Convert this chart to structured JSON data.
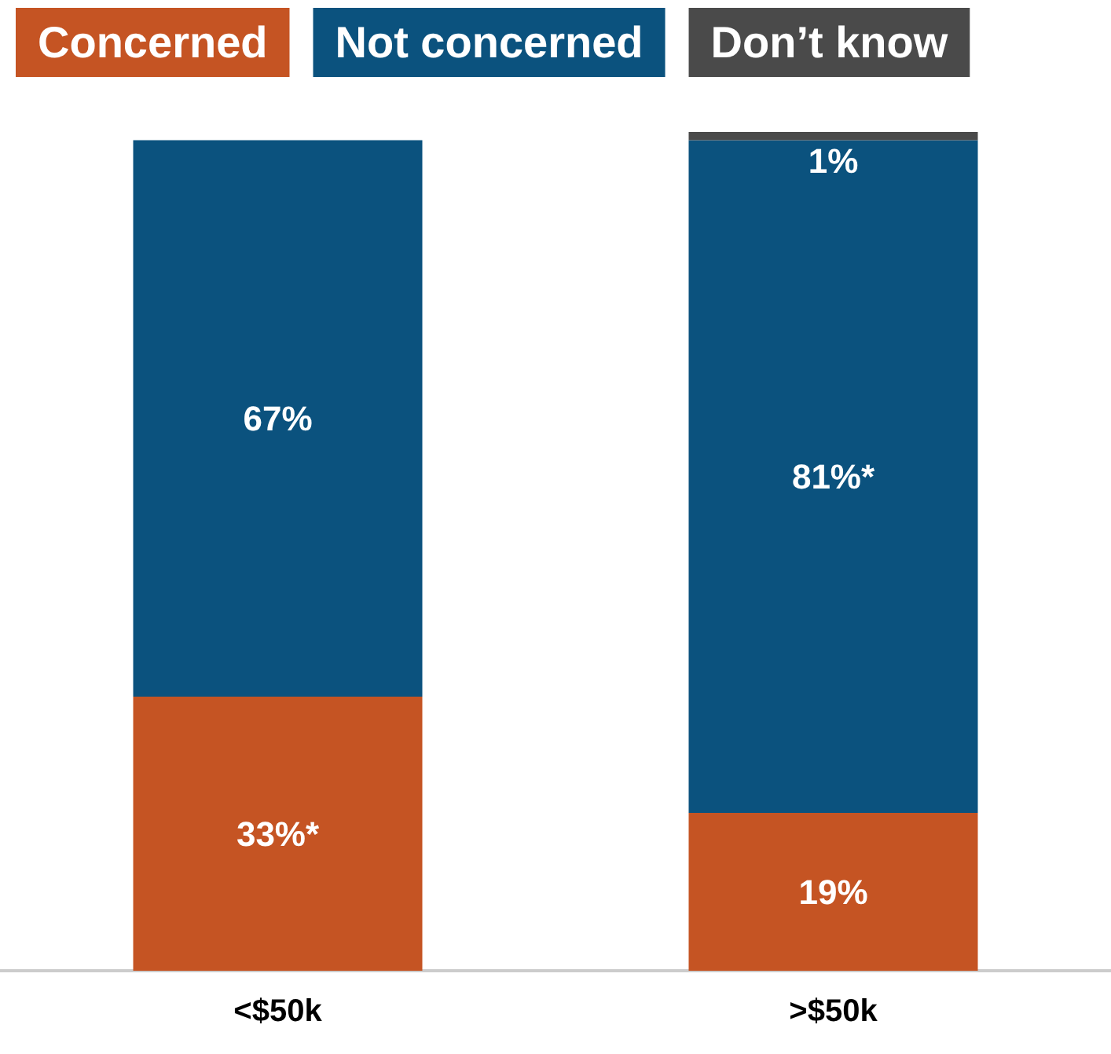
{
  "chart_data": {
    "type": "bar",
    "stacked": true,
    "categories": [
      "<$50k",
      ">$50k"
    ],
    "legend": "top left",
    "series": [
      {
        "name": "Concerned",
        "color": "#c55423",
        "values": [
          33,
          19
        ],
        "value_labels": [
          "33%*",
          "19%"
        ]
      },
      {
        "name": "Not concerned",
        "color": "#0b527e",
        "values": [
          67,
          81
        ],
        "value_labels": [
          "67%",
          "81%*"
        ]
      },
      {
        "name": "Don’t know",
        "color": "#4a4a4a",
        "values": [
          null,
          1
        ],
        "value_labels": [
          null,
          "1%"
        ]
      }
    ]
  }
}
